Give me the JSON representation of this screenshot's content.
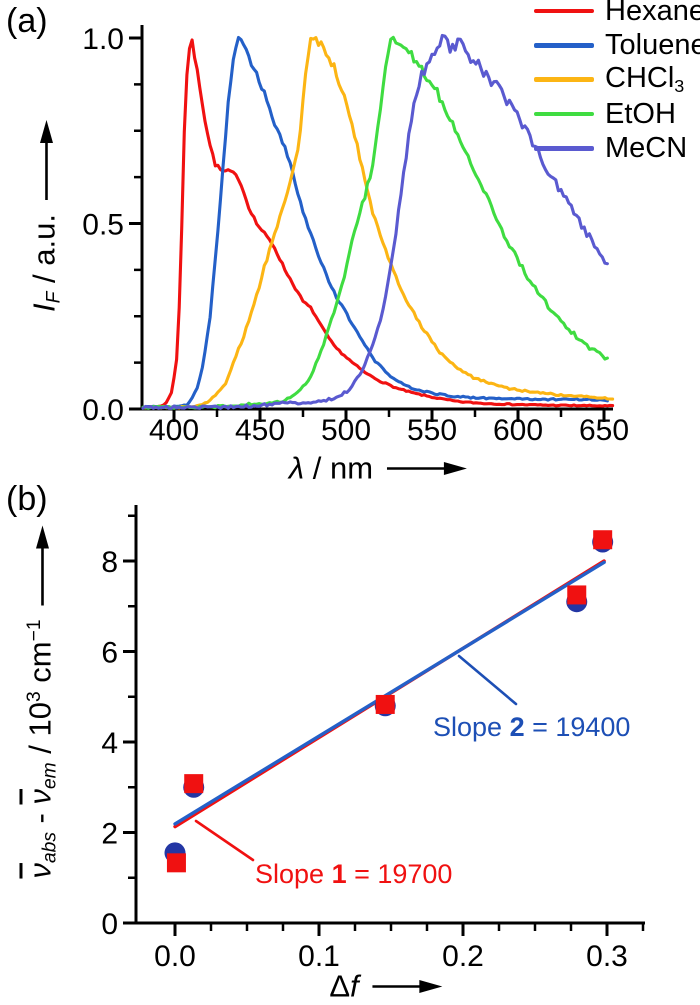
{
  "figure": {
    "panel_a_label": "(a)",
    "panel_b_label": "(b)"
  },
  "colors": {
    "hexane": "#f01111",
    "toluene": "#2460c8",
    "chcl3": "#fcb514",
    "etoh": "#3fdc41",
    "mecn": "#5a5ad0",
    "axis": "#000000",
    "series1_red": "#f01111",
    "series2_circle_blue": "#2336a4",
    "slope1_text": "#f01111",
    "slope2_text": "#1d4fb5"
  },
  "legend": {
    "position": "top-right",
    "items": [
      {
        "label": "Hexane",
        "color": "#f01111"
      },
      {
        "label": "Toluene",
        "color": "#2460c8"
      },
      {
        "label": "CHCl",
        "label_sub": "3",
        "color": "#fcb514"
      },
      {
        "label": "EtOH",
        "color": "#3fdc41"
      },
      {
        "label": "MeCN",
        "color": "#5a5ad0"
      }
    ]
  },
  "chart_data": [
    {
      "id": "emission-spectra",
      "type": "line",
      "title": "",
      "xlabel_parts": {
        "sym": "λ",
        "rest": " / nm"
      },
      "ylabel_parts": {
        "sym": "I",
        "sub": "F",
        "rest": " / a.u."
      },
      "xlim": [
        381,
        656
      ],
      "ylim": [
        0,
        1.04
      ],
      "x_ticks": [
        400,
        450,
        500,
        550,
        600,
        650
      ],
      "x_tick_labels": [
        "400",
        "450",
        "500",
        "550",
        "600",
        "650"
      ],
      "x_minor_ticks": [
        425,
        475,
        525,
        575,
        625
      ],
      "y_ticks": [
        0,
        0.5,
        1.0
      ],
      "y_tick_labels": [
        "0.0",
        "0.5",
        "1.0"
      ],
      "y_minor_ticks": [
        0.125,
        0.25,
        0.375,
        0.625,
        0.75,
        0.875
      ],
      "grid": false,
      "legend_position": "top-right",
      "series": [
        {
          "name": "Hexane",
          "color": "#f01111",
          "noise": 0.006,
          "peak_nm": 410,
          "points": [
            [
              382,
              0.005
            ],
            [
              390,
              0.006
            ],
            [
              395,
              0.012
            ],
            [
              399,
              0.05
            ],
            [
              402,
              0.15
            ],
            [
              404,
              0.4
            ],
            [
              406,
              0.75
            ],
            [
              408,
              0.95
            ],
            [
              410,
              1.0
            ],
            [
              412,
              0.95
            ],
            [
              415,
              0.87
            ],
            [
              418,
              0.78
            ],
            [
              421,
              0.71
            ],
            [
              424,
              0.66
            ],
            [
              428,
              0.64
            ],
            [
              433,
              0.64
            ],
            [
              438,
              0.62
            ],
            [
              443,
              0.55
            ],
            [
              448,
              0.5
            ],
            [
              453,
              0.47
            ],
            [
              458,
              0.44
            ],
            [
              464,
              0.38
            ],
            [
              470,
              0.33
            ],
            [
              475,
              0.29
            ],
            [
              480,
              0.27
            ],
            [
              486,
              0.22
            ],
            [
              493,
              0.17
            ],
            [
              500,
              0.14
            ],
            [
              505,
              0.12
            ],
            [
              512,
              0.095
            ],
            [
              520,
              0.075
            ],
            [
              530,
              0.055
            ],
            [
              540,
              0.042
            ],
            [
              552,
              0.03
            ],
            [
              565,
              0.02
            ],
            [
              580,
              0.015
            ],
            [
              600,
              0.012
            ],
            [
              620,
              0.01
            ],
            [
              640,
              0.009
            ],
            [
              655,
              0.008
            ]
          ]
        },
        {
          "name": "Toluene",
          "color": "#2460c8",
          "noise": 0.008,
          "peak_nm": 438,
          "points": [
            [
              382,
              0.005
            ],
            [
              400,
              0.006
            ],
            [
              408,
              0.012
            ],
            [
              413,
              0.05
            ],
            [
              417,
              0.12
            ],
            [
              421,
              0.25
            ],
            [
              425,
              0.45
            ],
            [
              428,
              0.62
            ],
            [
              431,
              0.8
            ],
            [
              434,
              0.93
            ],
            [
              437,
              0.99
            ],
            [
              439,
              1.0
            ],
            [
              442,
              0.97
            ],
            [
              445,
              0.93
            ],
            [
              450,
              0.88
            ],
            [
              455,
              0.82
            ],
            [
              460,
              0.75
            ],
            [
              465,
              0.7
            ],
            [
              470,
              0.62
            ],
            [
              474,
              0.55
            ],
            [
              478,
              0.49
            ],
            [
              482,
              0.44
            ],
            [
              487,
              0.38
            ],
            [
              491,
              0.33
            ],
            [
              496,
              0.29
            ],
            [
              500,
              0.26
            ],
            [
              505,
              0.22
            ],
            [
              510,
              0.18
            ],
            [
              515,
              0.14
            ],
            [
              519,
              0.12
            ],
            [
              525,
              0.09
            ],
            [
              532,
              0.07
            ],
            [
              540,
              0.053
            ],
            [
              550,
              0.042
            ],
            [
              562,
              0.035
            ],
            [
              575,
              0.03
            ],
            [
              590,
              0.028
            ],
            [
              605,
              0.027
            ],
            [
              620,
              0.026
            ],
            [
              635,
              0.026
            ],
            [
              652,
              0.024
            ]
          ]
        },
        {
          "name": "CHCl3",
          "color": "#fcb514",
          "noise": 0.009,
          "peak_nm": 480,
          "points": [
            [
              382,
              0.004
            ],
            [
              405,
              0.005
            ],
            [
              412,
              0.008
            ],
            [
              418,
              0.015
            ],
            [
              424,
              0.035
            ],
            [
              430,
              0.07
            ],
            [
              435,
              0.13
            ],
            [
              440,
              0.19
            ],
            [
              445,
              0.26
            ],
            [
              449,
              0.32
            ],
            [
              453,
              0.39
            ],
            [
              457,
              0.45
            ],
            [
              461,
              0.51
            ],
            [
              465,
              0.57
            ],
            [
              469,
              0.64
            ],
            [
              472,
              0.7
            ],
            [
              474,
              0.78
            ],
            [
              476,
              0.88
            ],
            [
              478,
              0.96
            ],
            [
              480,
              1.0
            ],
            [
              484,
              0.99
            ],
            [
              488,
              0.96
            ],
            [
              493,
              0.92
            ],
            [
              498,
              0.86
            ],
            [
              503,
              0.78
            ],
            [
              507,
              0.7
            ],
            [
              511,
              0.62
            ],
            [
              515,
              0.54
            ],
            [
              520,
              0.47
            ],
            [
              525,
              0.4
            ],
            [
              531,
              0.33
            ],
            [
              537,
              0.28
            ],
            [
              543,
              0.23
            ],
            [
              550,
              0.18
            ],
            [
              557,
              0.14
            ],
            [
              565,
              0.11
            ],
            [
              574,
              0.085
            ],
            [
              584,
              0.068
            ],
            [
              595,
              0.055
            ],
            [
              607,
              0.046
            ],
            [
              620,
              0.04
            ],
            [
              635,
              0.034
            ],
            [
              648,
              0.03
            ],
            [
              655,
              0.028
            ]
          ]
        },
        {
          "name": "EtOH",
          "color": "#3fdc41",
          "noise": 0.012,
          "peak_nm": 527,
          "points": [
            [
              382,
              0.004
            ],
            [
              420,
              0.005
            ],
            [
              432,
              0.008
            ],
            [
              443,
              0.013
            ],
            [
              452,
              0.016
            ],
            [
              463,
              0.02
            ],
            [
              470,
              0.035
            ],
            [
              479,
              0.08
            ],
            [
              486,
              0.16
            ],
            [
              492,
              0.25
            ],
            [
              498,
              0.34
            ],
            [
              503,
              0.44
            ],
            [
              509,
              0.54
            ],
            [
              515,
              0.64
            ],
            [
              518,
              0.73
            ],
            [
              520,
              0.82
            ],
            [
              522,
              0.9
            ],
            [
              524,
              0.96
            ],
            [
              527,
              1.0
            ],
            [
              531,
              0.99
            ],
            [
              535,
              0.97
            ],
            [
              540,
              0.94
            ],
            [
              545,
              0.91
            ],
            [
              551,
              0.87
            ],
            [
              557,
              0.82
            ],
            [
              563,
              0.76
            ],
            [
              569,
              0.7
            ],
            [
              575,
              0.64
            ],
            [
              581,
              0.58
            ],
            [
              587,
              0.52
            ],
            [
              593,
              0.46
            ],
            [
              599,
              0.41
            ],
            [
              605,
              0.36
            ],
            [
              612,
              0.31
            ],
            [
              619,
              0.27
            ],
            [
              626,
              0.23
            ],
            [
              633,
              0.2
            ],
            [
              640,
              0.17
            ],
            [
              647,
              0.15
            ],
            [
              653,
              0.13
            ]
          ]
        },
        {
          "name": "MeCN",
          "color": "#5a5ad0",
          "noise": 0.014,
          "peak_nm": 556,
          "points": [
            [
              382,
              0.004
            ],
            [
              430,
              0.005
            ],
            [
              445,
              0.008
            ],
            [
              455,
              0.012
            ],
            [
              465,
              0.016
            ],
            [
              475,
              0.018
            ],
            [
              486,
              0.02
            ],
            [
              494,
              0.032
            ],
            [
              502,
              0.05
            ],
            [
              509,
              0.1
            ],
            [
              517,
              0.19
            ],
            [
              523,
              0.3
            ],
            [
              528,
              0.44
            ],
            [
              532,
              0.58
            ],
            [
              536,
              0.72
            ],
            [
              540,
              0.83
            ],
            [
              544,
              0.9
            ],
            [
              548,
              0.94
            ],
            [
              552,
              0.97
            ],
            [
              556,
              1.0
            ],
            [
              561,
              0.97
            ],
            [
              565,
              0.99
            ],
            [
              570,
              0.96
            ],
            [
              576,
              0.93
            ],
            [
              582,
              0.9
            ],
            [
              588,
              0.87
            ],
            [
              594,
              0.83
            ],
            [
              600,
              0.79
            ],
            [
              606,
              0.74
            ],
            [
              612,
              0.69
            ],
            [
              618,
              0.64
            ],
            [
              624,
              0.59
            ],
            [
              630,
              0.55
            ],
            [
              636,
              0.5
            ],
            [
              642,
              0.46
            ],
            [
              648,
              0.42
            ],
            [
              653,
              0.38
            ]
          ]
        }
      ]
    },
    {
      "id": "lippert-mataga-plot",
      "type": "scatter",
      "title": "",
      "xlabel_parts": {
        "sym": "Δ",
        "sym2": "f"
      },
      "ylabel_parts": {
        "nu_abs_sym": "ν",
        "nu_abs_sub": "abs",
        "minus": " - ",
        "nu_em_sym": "ν",
        "nu_em_sub": "em",
        "unit_pre": " / 10",
        "unit_exp": "3",
        "unit_mid": " cm",
        "unit_exp2": "−1"
      },
      "xlim": [
        -0.027,
        0.326
      ],
      "ylim": [
        0,
        9.2
      ],
      "x_ticks": [
        0.0,
        0.1,
        0.2,
        0.3
      ],
      "x_tick_labels": [
        "0.0",
        "0.1",
        "0.2",
        "0.3"
      ],
      "x_minor_ticks": [
        0.025,
        0.05,
        0.075,
        0.125,
        0.15,
        0.175,
        0.225,
        0.25,
        0.275,
        0.325
      ],
      "y_ticks": [
        0,
        2,
        4,
        6,
        8
      ],
      "y_tick_labels": [
        "0",
        "2",
        "4",
        "6",
        "8"
      ],
      "y_minor_ticks": [
        1,
        3,
        5,
        7,
        9
      ],
      "grid": false,
      "series": [
        {
          "name": "2",
          "marker": "circle",
          "color": "#2336a4",
          "points": [
            [
              0.0,
              1.55
            ],
            [
              0.013,
              3.0
            ],
            [
              0.146,
              4.8
            ],
            [
              0.279,
              7.1
            ],
            [
              0.297,
              8.42
            ]
          ]
        },
        {
          "name": "1",
          "marker": "square",
          "color": "#f01111",
          "points": [
            [
              0.001,
              1.33
            ],
            [
              0.013,
              3.08
            ],
            [
              0.146,
              4.83
            ],
            [
              0.279,
              7.25
            ],
            [
              0.297,
              8.47
            ]
          ]
        }
      ],
      "fit_lines": [
        {
          "name": "fit-1",
          "color": "#f01111",
          "slope": 19700,
          "x1": 0.0,
          "y1": 2.13,
          "x2": 0.298,
          "y2": 8.0
        },
        {
          "name": "fit-2",
          "color": "#2460c8",
          "slope": 19400,
          "x1": 0.0,
          "y1": 2.19,
          "x2": 0.298,
          "y2": 7.97
        }
      ],
      "annotations": [
        {
          "prefix": "Slope ",
          "number": "1",
          "suffix": " = 19700",
          "color": "#f01111"
        },
        {
          "prefix": "Slope ",
          "number": "2",
          "suffix": " = 19400",
          "color": "#1d4fb5"
        }
      ]
    }
  ]
}
